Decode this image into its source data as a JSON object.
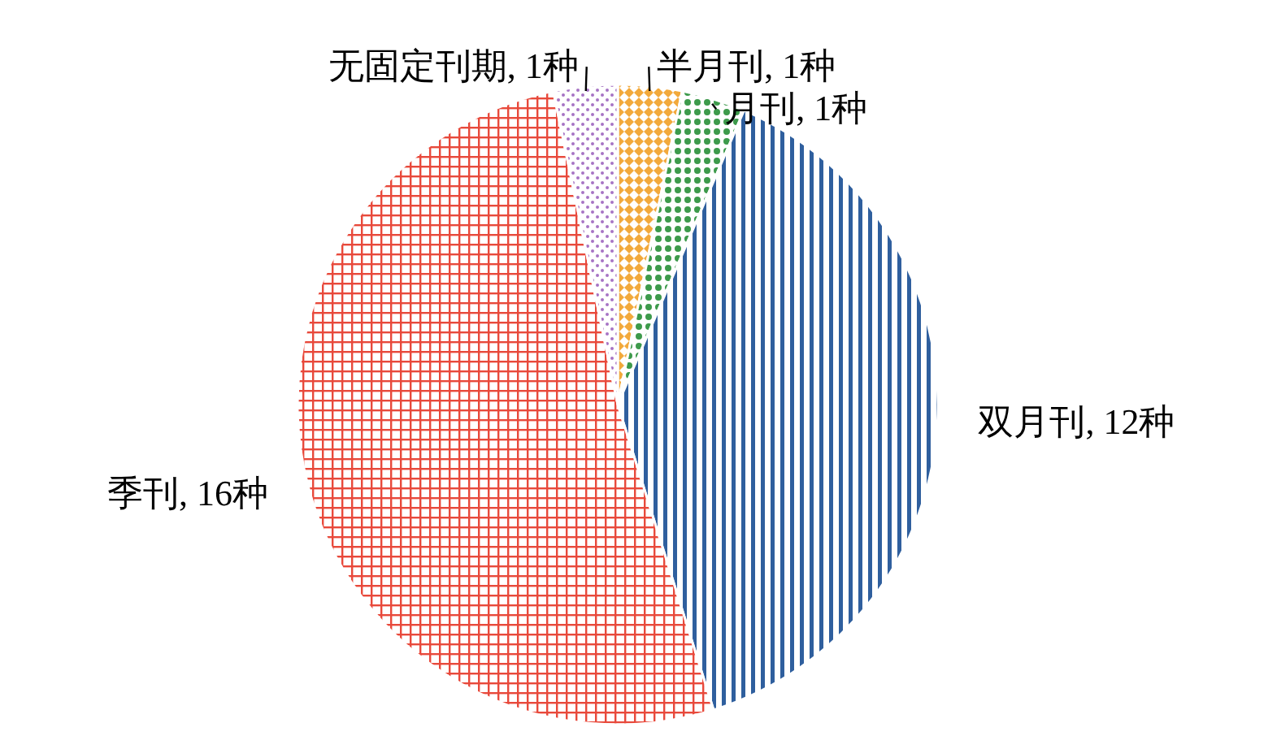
{
  "chart_data": {
    "type": "pie",
    "categories": [
      "半月刊",
      "月刊",
      "双月刊",
      "季刊",
      "无固定刊期"
    ],
    "values": [
      1,
      1,
      12,
      16,
      1
    ],
    "colors": [
      "#f2a93b",
      "#3d9a4b",
      "#2f5f9e",
      "#e8493b",
      "#a673c4"
    ],
    "value_labels": [
      "1种",
      "1种",
      "12种",
      "16种",
      "1种"
    ]
  }
}
